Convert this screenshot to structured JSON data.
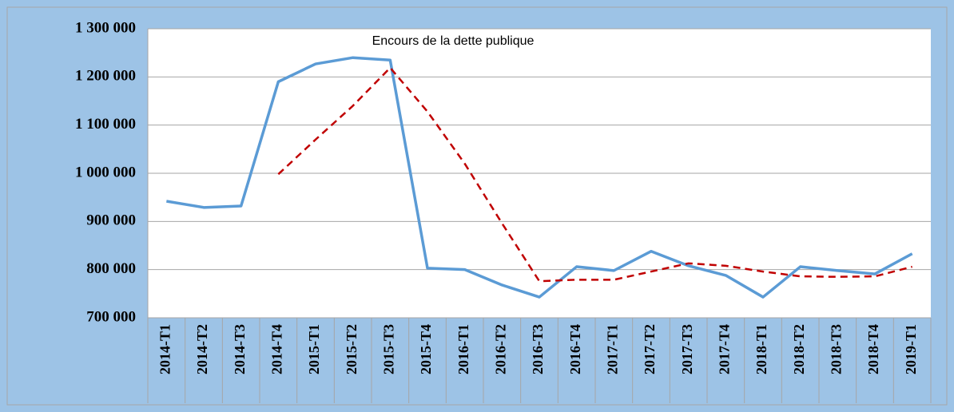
{
  "chart_data": {
    "type": "line",
    "title": "Encours de la dette publique",
    "categories": [
      "2014-T1",
      "2014-T2",
      "2014-T3",
      "2014-T4",
      "2015-T1",
      "2015-T2",
      "2015-T3",
      "2015-T4",
      "2016-T1",
      "2016-T2",
      "2016-T3",
      "2016-T4",
      "2017-T1",
      "2017-T2",
      "2017-T3",
      "2017-T4",
      "2018-T1",
      "2018-T2",
      "2018-T3",
      "2018-T4",
      "2019-T1"
    ],
    "series": [
      {
        "color": "#5b9bd5",
        "style": "solid",
        "values": [
          942000,
          929000,
          932000,
          1190000,
          1227000,
          1240000,
          1235000,
          803000,
          800000,
          768000,
          743000,
          806000,
          798000,
          838000,
          808000,
          788000,
          743000,
          806000,
          798000,
          791000,
          833000
        ]
      },
      {
        "color": "#c00000",
        "style": "dashed",
        "values": [
          null,
          null,
          null,
          998000,
          1070000,
          1140000,
          1219000,
          1128000,
          1020000,
          896000,
          776000,
          779000,
          779000,
          796000,
          813000,
          808000,
          796000,
          786000,
          785000,
          786000,
          806000
        ]
      }
    ],
    "ylim": [
      700000,
      1300000
    ],
    "yticks": [
      {
        "value": 700000,
        "label": "700 000"
      },
      {
        "value": 800000,
        "label": "800 000"
      },
      {
        "value": 900000,
        "label": "900 000"
      },
      {
        "value": 1000000,
        "label": "1 000 000"
      },
      {
        "value": 1100000,
        "label": "1 100 000"
      },
      {
        "value": 1200000,
        "label": "1 200 000"
      },
      {
        "value": 1300000,
        "label": "1 300 000"
      }
    ],
    "grid": true
  }
}
